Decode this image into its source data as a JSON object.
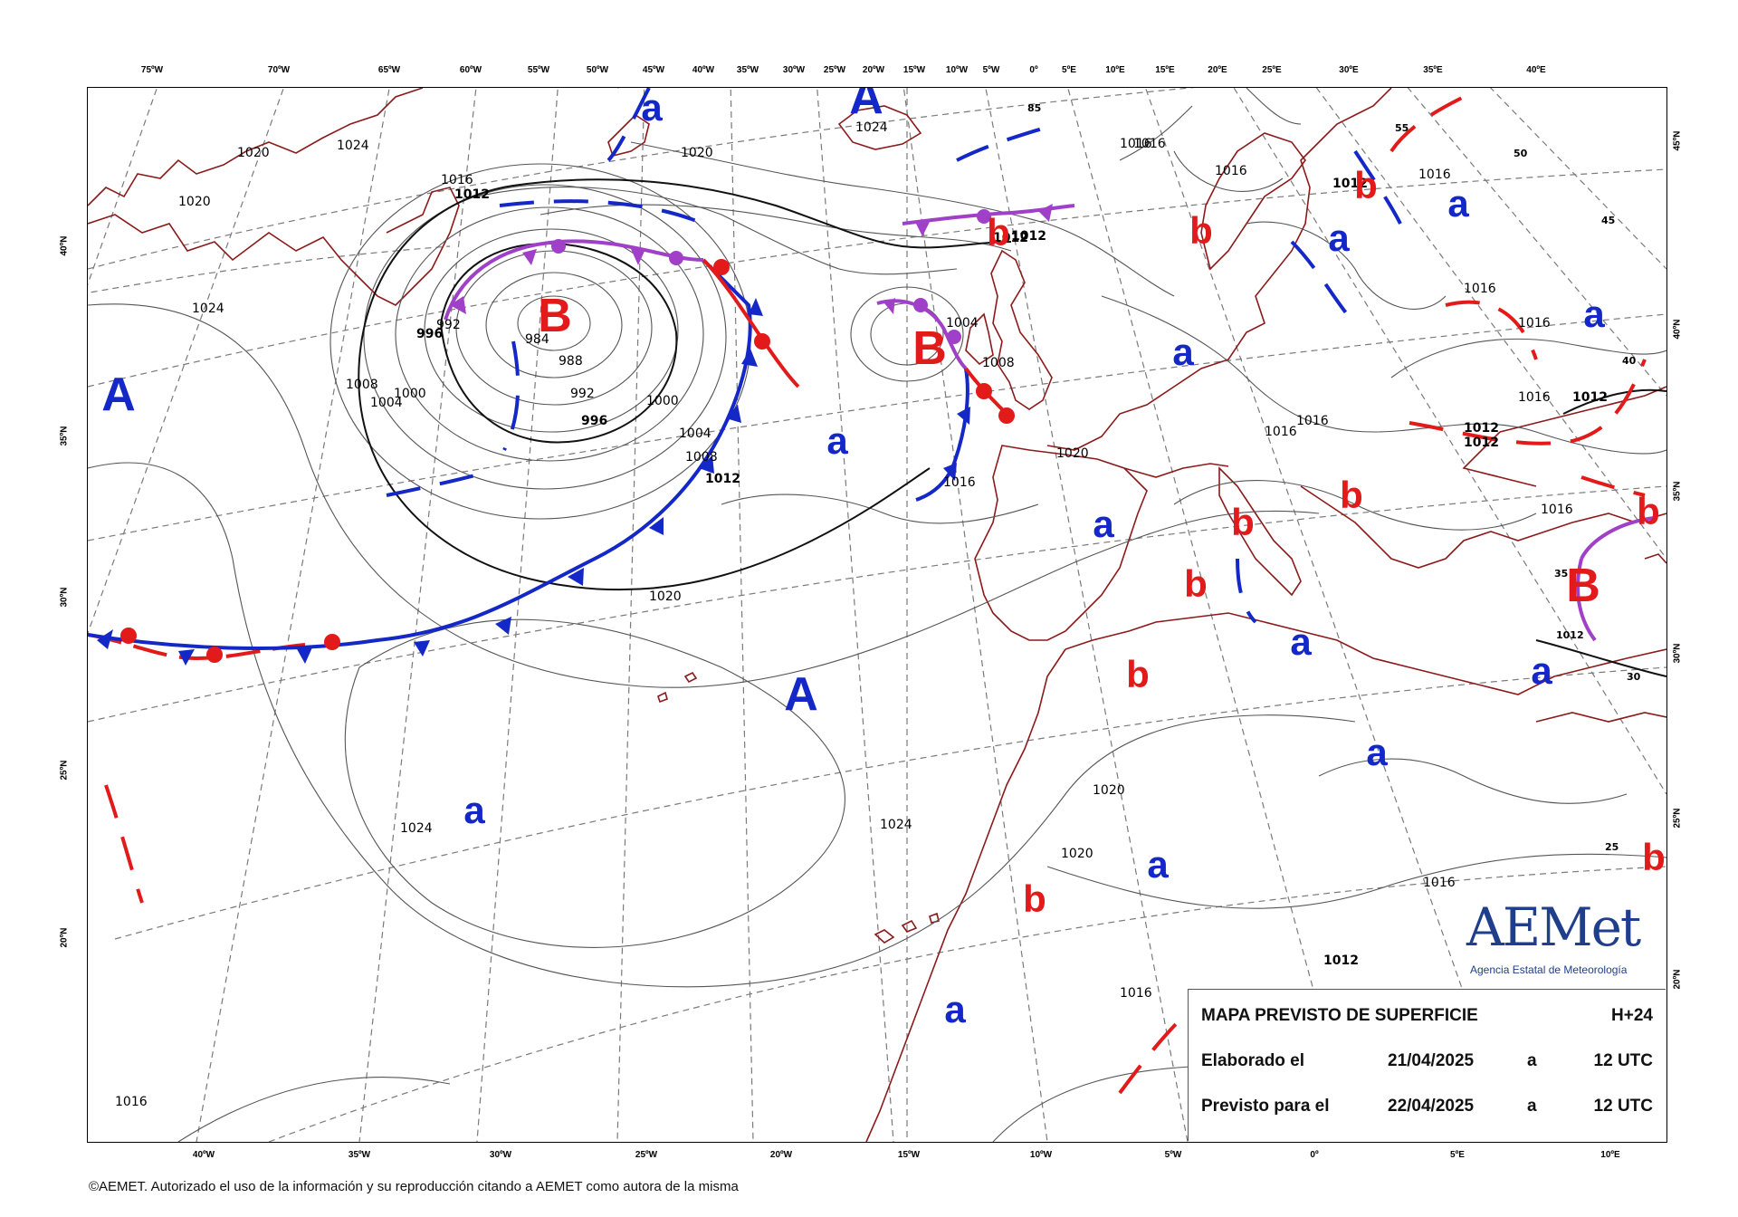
{
  "colors": {
    "coast": "#8b1a1a",
    "isobar": "#444444",
    "grid": "#7a7a7a",
    "cold_front": "#1428c8",
    "warm_front": "#e21a1a",
    "occluded_front": "#a040c8",
    "high": "#1428c8",
    "low": "#e21a1a"
  },
  "axis": {
    "top_longitudes": [
      "75ºW",
      "70ºW",
      "65ºW",
      "60ºW",
      "55ºW",
      "50ºW",
      "45ºW",
      "40ºW",
      "35ºW",
      "30ºW",
      "25ºW",
      "20ºW",
      "15ºW",
      "10ºW",
      "5ºW",
      "0º",
      "5ºE",
      "10ºE",
      "15ºE",
      "20ºE",
      "25ºE",
      "30ºE",
      "35ºE",
      "40ºE"
    ],
    "bottom_longitudes": [
      "40ºW",
      "35ºW",
      "30ºW",
      "25ºW",
      "20ºW",
      "15ºW",
      "10ºW",
      "5ºW",
      "0º",
      "5ºE",
      "10ºE"
    ],
    "left_latitudes": [
      "40ºN",
      "35ºN",
      "30ºN",
      "25ºN",
      "20ºN"
    ],
    "right_latitudes": [
      "45ºN",
      "40ºN",
      "35ºN",
      "30ºN",
      "25ºN",
      "20ºN"
    ]
  },
  "pressure_systems": [
    {
      "label": "A",
      "kind": "high",
      "size": "big"
    },
    {
      "label": "A",
      "kind": "high",
      "size": "big"
    },
    {
      "label": "A",
      "kind": "high",
      "size": "big"
    },
    {
      "label": "B",
      "kind": "low",
      "size": "big"
    },
    {
      "label": "B",
      "kind": "low",
      "size": "big"
    },
    {
      "label": "B",
      "kind": "low",
      "size": "big"
    },
    {
      "label": "a",
      "kind": "high",
      "size": "small"
    },
    {
      "label": "a",
      "kind": "high",
      "size": "small"
    },
    {
      "label": "a",
      "kind": "high",
      "size": "small"
    },
    {
      "label": "a",
      "kind": "high",
      "size": "small"
    },
    {
      "label": "a",
      "kind": "high",
      "size": "small"
    },
    {
      "label": "a",
      "kind": "high",
      "size": "small"
    },
    {
      "label": "a",
      "kind": "high",
      "size": "small"
    },
    {
      "label": "a",
      "kind": "high",
      "size": "small"
    },
    {
      "label": "a",
      "kind": "high",
      "size": "small"
    },
    {
      "label": "a",
      "kind": "high",
      "size": "small"
    },
    {
      "label": "a",
      "kind": "high",
      "size": "small"
    },
    {
      "label": "a",
      "kind": "high",
      "size": "small"
    },
    {
      "label": "a",
      "kind": "high",
      "size": "small"
    },
    {
      "label": "b",
      "kind": "low",
      "size": "small"
    },
    {
      "label": "b",
      "kind": "low",
      "size": "small"
    },
    {
      "label": "b",
      "kind": "low",
      "size": "small"
    },
    {
      "label": "b",
      "kind": "low",
      "size": "small"
    },
    {
      "label": "b",
      "kind": "low",
      "size": "small"
    },
    {
      "label": "b",
      "kind": "low",
      "size": "small"
    },
    {
      "label": "b",
      "kind": "low",
      "size": "small"
    },
    {
      "label": "b",
      "kind": "low",
      "size": "small"
    },
    {
      "label": "b",
      "kind": "low",
      "size": "small"
    },
    {
      "label": "b",
      "kind": "low",
      "size": "small"
    },
    {
      "label": "b",
      "kind": "low",
      "size": "small"
    }
  ],
  "isobar_labels": [
    "1020",
    "1024",
    "1016",
    "1012",
    "1020",
    "1024",
    "1020",
    "1016",
    "1012",
    "1016",
    "1016",
    "1016",
    "1012",
    "1024",
    "1008",
    "1004",
    "1000",
    "996",
    "992",
    "984",
    "988",
    "992",
    "996",
    "1000",
    "1004",
    "1008",
    "1012",
    "1004",
    "1008",
    "1012",
    "1016",
    "1020",
    "1016",
    "1016",
    "1016",
    "1012",
    "1012",
    "1016",
    "1016",
    "1012",
    "1016",
    "1020",
    "1020",
    "1024",
    "1024",
    "1020",
    "1016",
    "1012",
    "1016",
    "1016"
  ],
  "contour_small_labels": [
    "85",
    "55",
    "50",
    "45",
    "40",
    "30",
    "25",
    "35",
    "1012"
  ],
  "info": {
    "title": "MAPA PREVISTO DE SUPERFICIE",
    "step": "H+24",
    "made_label": "Elaborado el",
    "made_date": "21/04/2025",
    "made_a": "a",
    "made_time": "12 UTC",
    "valid_label": "Previsto para el",
    "valid_date": "22/04/2025",
    "valid_a": "a",
    "valid_time": "12 UTC"
  },
  "logo": {
    "name": "AEMet",
    "subtitle": "Agencia Estatal de Meteorología"
  },
  "copyright": "©AEMET. Autorizado el uso de la información y su reproducción citando a AEMET como autora de la misma"
}
